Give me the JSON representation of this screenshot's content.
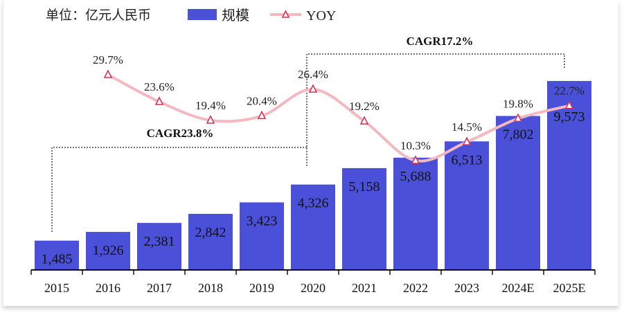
{
  "chart_data": {
    "type": "bar+line",
    "unit_label": "单位：亿元人民币",
    "categories": [
      "2015",
      "2016",
      "2017",
      "2018",
      "2019",
      "2020",
      "2021",
      "2022",
      "2023",
      "2024E",
      "2025E"
    ],
    "series": [
      {
        "name": "规模",
        "type": "bar",
        "color": "#4a50d8",
        "values": [
          1485,
          1926,
          2381,
          2842,
          3423,
          4326,
          5158,
          5688,
          6513,
          7802,
          9573
        ],
        "labels": [
          "1,485",
          "1,926",
          "2,381",
          "2,842",
          "3,423",
          "4,326",
          "5,158",
          "5,688",
          "6,513",
          "7,802",
          "9,573"
        ]
      },
      {
        "name": "YOY",
        "type": "line",
        "color": "#f4b8c0",
        "marker_color": "#e0284a",
        "values": [
          null,
          29.7,
          23.6,
          19.4,
          20.4,
          26.4,
          19.2,
          10.3,
          14.5,
          19.8,
          22.7
        ],
        "labels": [
          null,
          "29.7%",
          "23.6%",
          "19.4%",
          "20.4%",
          "26.4%",
          "19.2%",
          "10.3%",
          "14.5%",
          "19.8%",
          "22.7%"
        ]
      }
    ],
    "annotations": [
      {
        "text": "CAGR23.8%",
        "from": "2015",
        "to": "2020"
      },
      {
        "text": "CAGR17.2%",
        "from": "2020",
        "to": "2025E"
      }
    ],
    "legend_position": "top",
    "grid": false
  }
}
